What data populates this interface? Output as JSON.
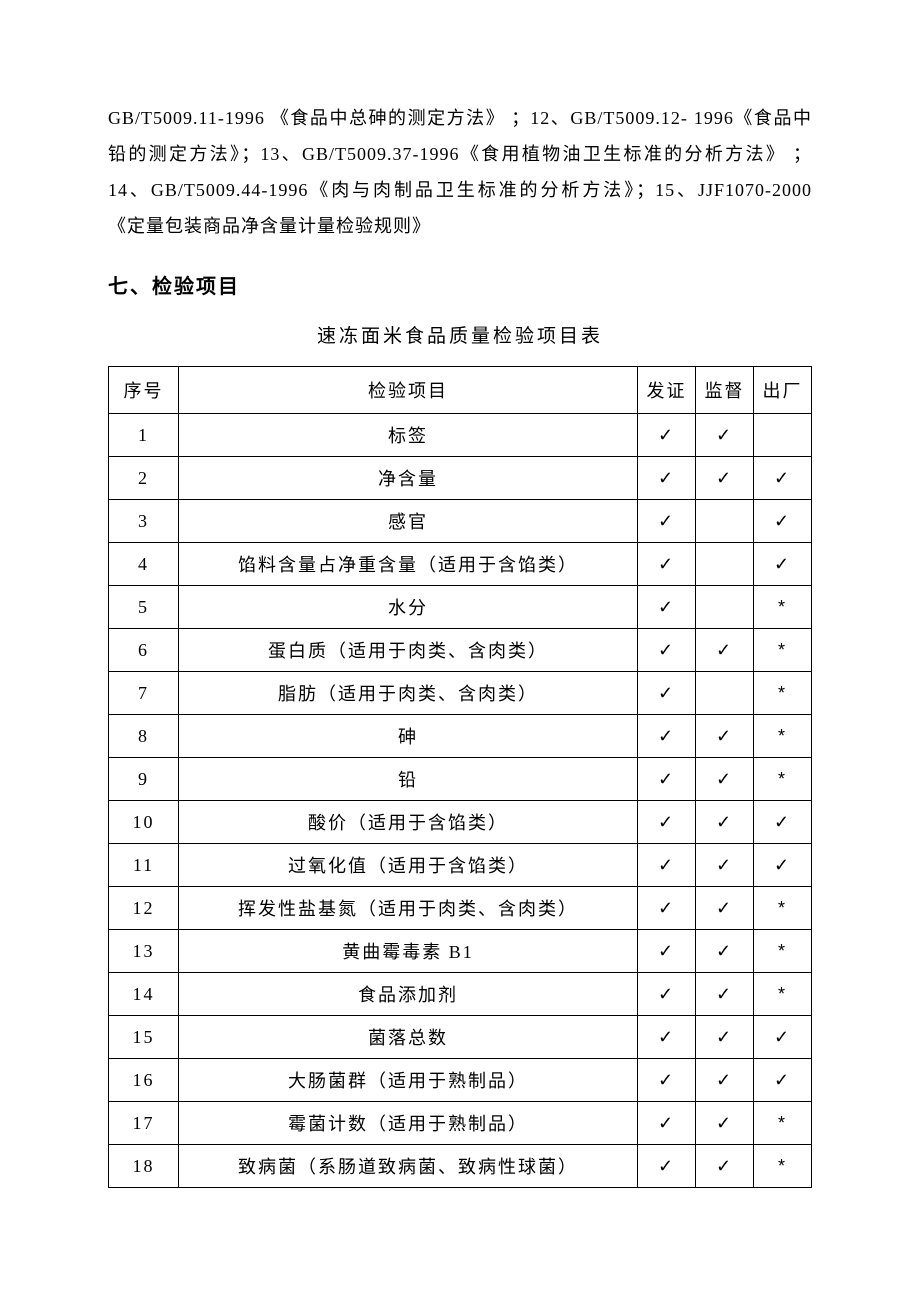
{
  "intro": {
    "text": "GB/T5009.11-1996 《食品中总砷的测定方法》 ；12、GB/T5009.12- 1996《食品中铅的测定方法》；13、GB/T5009.37-1996《食用植物油卫生标准的分析方法》 ；14、GB/T5009.44-1996《肉与肉制品卫生标准的分析方法》；15、JJF1070-2000    《定量包装商品净含量计量检验规则》"
  },
  "section": {
    "heading": "七、检验项目",
    "caption": "速冻面米食品质量检验项目表"
  },
  "table": {
    "headers": {
      "seq": "序号",
      "item": "检验项目",
      "cert": "发证",
      "supervise": "监督",
      "factory": "出厂"
    },
    "marks": {
      "check": "✓",
      "star": "*",
      "empty": ""
    },
    "rows": [
      {
        "seq": "1",
        "item": "标签",
        "cert": "check",
        "supervise": "check",
        "factory": "empty"
      },
      {
        "seq": "2",
        "item": "净含量",
        "cert": "check",
        "supervise": "check",
        "factory": "check"
      },
      {
        "seq": "3",
        "item": "感官",
        "cert": "check",
        "supervise": "empty",
        "factory": "check"
      },
      {
        "seq": "4",
        "item": "馅料含量占净重含量（适用于含馅类）",
        "cert": "check",
        "supervise": "empty",
        "factory": "check"
      },
      {
        "seq": "5",
        "item": "水分",
        "cert": "check",
        "supervise": "empty",
        "factory": "star"
      },
      {
        "seq": "6",
        "item": "蛋白质（适用于肉类、含肉类）",
        "cert": "check",
        "supervise": "check",
        "factory": "star"
      },
      {
        "seq": "7",
        "item": "脂肪（适用于肉类、含肉类）",
        "cert": "check",
        "supervise": "empty",
        "factory": "star"
      },
      {
        "seq": "8",
        "item": "砷",
        "cert": "check",
        "supervise": "check",
        "factory": "star"
      },
      {
        "seq": "9",
        "item": "铅",
        "cert": "check",
        "supervise": "check",
        "factory": "star"
      },
      {
        "seq": "10",
        "item": "酸价（适用于含馅类）",
        "cert": "check",
        "supervise": "check",
        "factory": "check"
      },
      {
        "seq": "11",
        "item": "过氧化值（适用于含馅类）",
        "cert": "check",
        "supervise": "check",
        "factory": "check"
      },
      {
        "seq": "12",
        "item": "挥发性盐基氮（适用于肉类、含肉类）",
        "cert": "check",
        "supervise": "check",
        "factory": "star"
      },
      {
        "seq": "13",
        "item": "黄曲霉毒素 B1",
        "cert": "check",
        "supervise": "check",
        "factory": "star"
      },
      {
        "seq": "14",
        "item": "食品添加剂",
        "cert": "check",
        "supervise": "check",
        "factory": "star"
      },
      {
        "seq": "15",
        "item": "菌落总数",
        "cert": "check",
        "supervise": "check",
        "factory": "check"
      },
      {
        "seq": "16",
        "item": "大肠菌群（适用于熟制品）",
        "cert": "check",
        "supervise": "check",
        "factory": "check"
      },
      {
        "seq": "17",
        "item": "霉菌计数（适用于熟制品）",
        "cert": "check",
        "supervise": "check",
        "factory": "star"
      },
      {
        "seq": "18",
        "item": "致病菌（系肠道致病菌、致病性球菌）",
        "cert": "check",
        "supervise": "check",
        "factory": "star"
      }
    ]
  }
}
